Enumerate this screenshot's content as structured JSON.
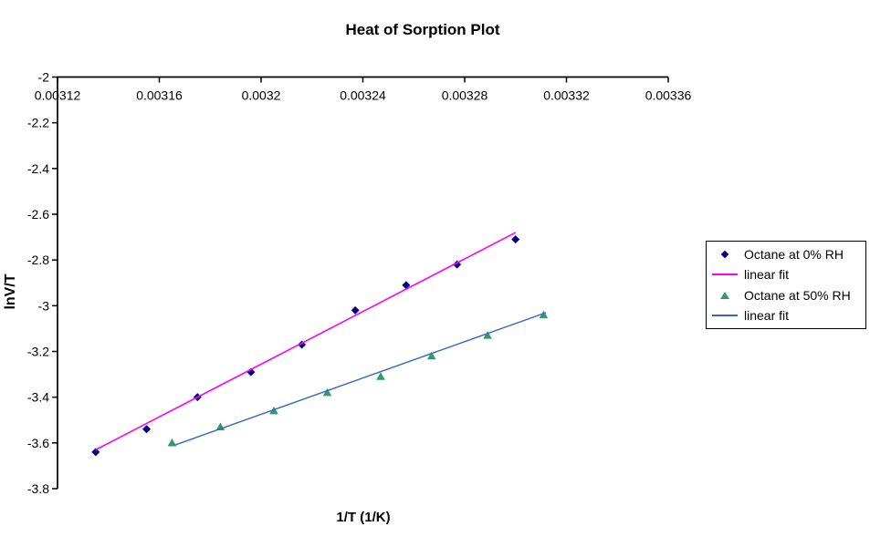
{
  "chart_data": {
    "type": "scatter",
    "title": "Heat of Sorption Plot",
    "xlabel": "1/T (1/K)",
    "ylabel": "lnV/T",
    "xlim": [
      0.00312,
      0.00336
    ],
    "ylim": [
      -3.8,
      -2
    ],
    "x_ticks": [
      0.00312,
      0.00316,
      0.0032,
      0.00324,
      0.00328,
      0.00332,
      0.00336
    ],
    "x_tick_labels": [
      "0.00312",
      "0.00316",
      "0.0032",
      "0.00324",
      "0.00328",
      "0.00332",
      "0.00336"
    ],
    "y_ticks": [
      -2,
      -2.2,
      -2.4,
      -2.6,
      -2.8,
      -3,
      -3.2,
      -3.4,
      -3.6,
      -3.8
    ],
    "y_tick_labels": [
      "-2",
      "-2.2",
      "-2.4",
      "-2.6",
      "-2.8",
      "-3",
      "-3.2",
      "-3.4",
      "-3.6",
      "-3.8"
    ],
    "grid": false,
    "legend_position": "right",
    "background_color": "#ffffff",
    "axis_color": "#000000",
    "series": [
      {
        "name": "Octane at 0% RH",
        "type": "scatter",
        "marker": "diamond",
        "color": "#000080",
        "points": [
          [
            0.003135,
            -3.64
          ],
          [
            0.003155,
            -3.54
          ],
          [
            0.003175,
            -3.4
          ],
          [
            0.003196,
            -3.29
          ],
          [
            0.003216,
            -3.17
          ],
          [
            0.003237,
            -3.02
          ],
          [
            0.003257,
            -2.91
          ],
          [
            0.003277,
            -2.82
          ],
          [
            0.0033,
            -2.71
          ]
        ]
      },
      {
        "name": "linear fit",
        "type": "line",
        "color": "#FF00FF",
        "points": [
          [
            0.003135,
            -3.63
          ],
          [
            0.0033,
            -2.68
          ]
        ]
      },
      {
        "name": "Octane at 50% RH",
        "type": "scatter",
        "marker": "triangle",
        "color": "#339966",
        "points": [
          [
            0.003165,
            -3.6
          ],
          [
            0.003184,
            -3.53
          ],
          [
            0.003205,
            -3.46
          ],
          [
            0.003226,
            -3.38
          ],
          [
            0.003247,
            -3.31
          ],
          [
            0.003267,
            -3.22
          ],
          [
            0.003289,
            -3.13
          ],
          [
            0.003311,
            -3.04
          ]
        ]
      },
      {
        "name": "linear fit",
        "type": "line",
        "color": "#3366CC",
        "points": [
          [
            0.003166,
            -3.61
          ],
          [
            0.003312,
            -3.03
          ]
        ]
      }
    ]
  }
}
